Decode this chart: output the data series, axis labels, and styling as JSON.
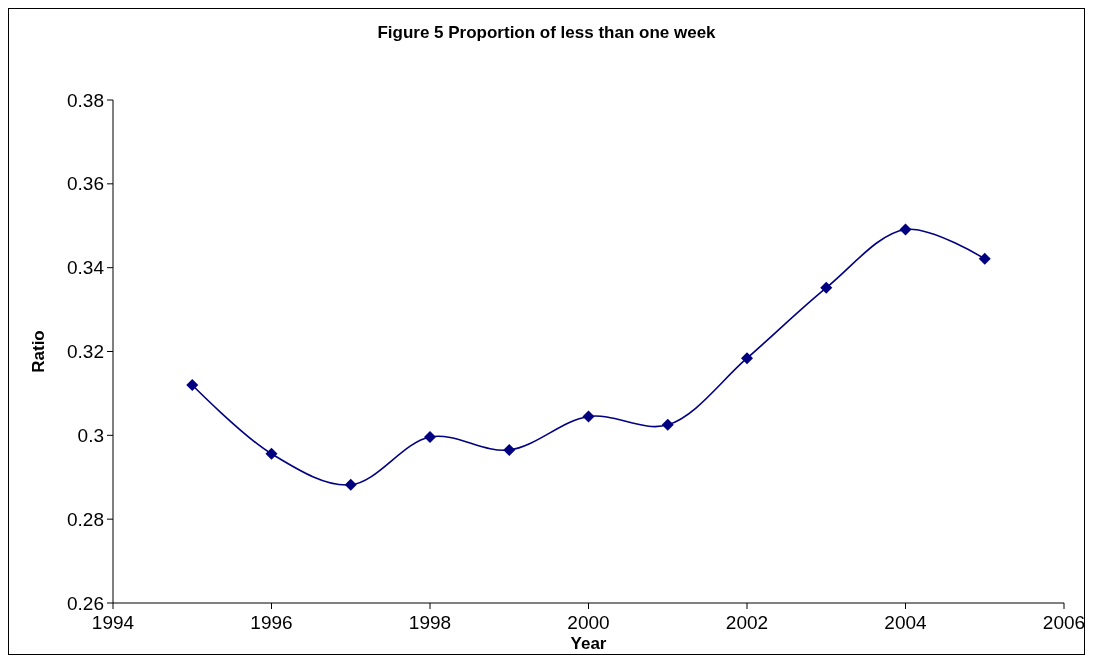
{
  "chart_data": {
    "type": "line",
    "title": "Figure 5 Proportion of less than one week",
    "xlabel": "Year",
    "ylabel": "Ratio",
    "x": [
      1995,
      1996,
      1997,
      1998,
      1999,
      2000,
      2001,
      2002,
      2003,
      2004,
      2005
    ],
    "series": [
      {
        "color": "#000080",
        "values": [
          0.312,
          0.2956,
          0.2882,
          0.2996,
          0.2965,
          0.3045,
          0.3025,
          0.3184,
          0.3352,
          0.3491,
          0.3421
        ]
      }
    ],
    "xlim": [
      1994,
      2006
    ],
    "xticks": [
      1994,
      1996,
      1998,
      2000,
      2002,
      2004,
      2006
    ],
    "ylim": [
      0.26,
      0.38
    ],
    "yticks": [
      0.26,
      0.28,
      {
        "value": 0.3,
        "label": "0.3"
      },
      0.32,
      0.34,
      0.36,
      0.38
    ],
    "grid": false,
    "marker": "diamond",
    "line_style": "solid"
  }
}
